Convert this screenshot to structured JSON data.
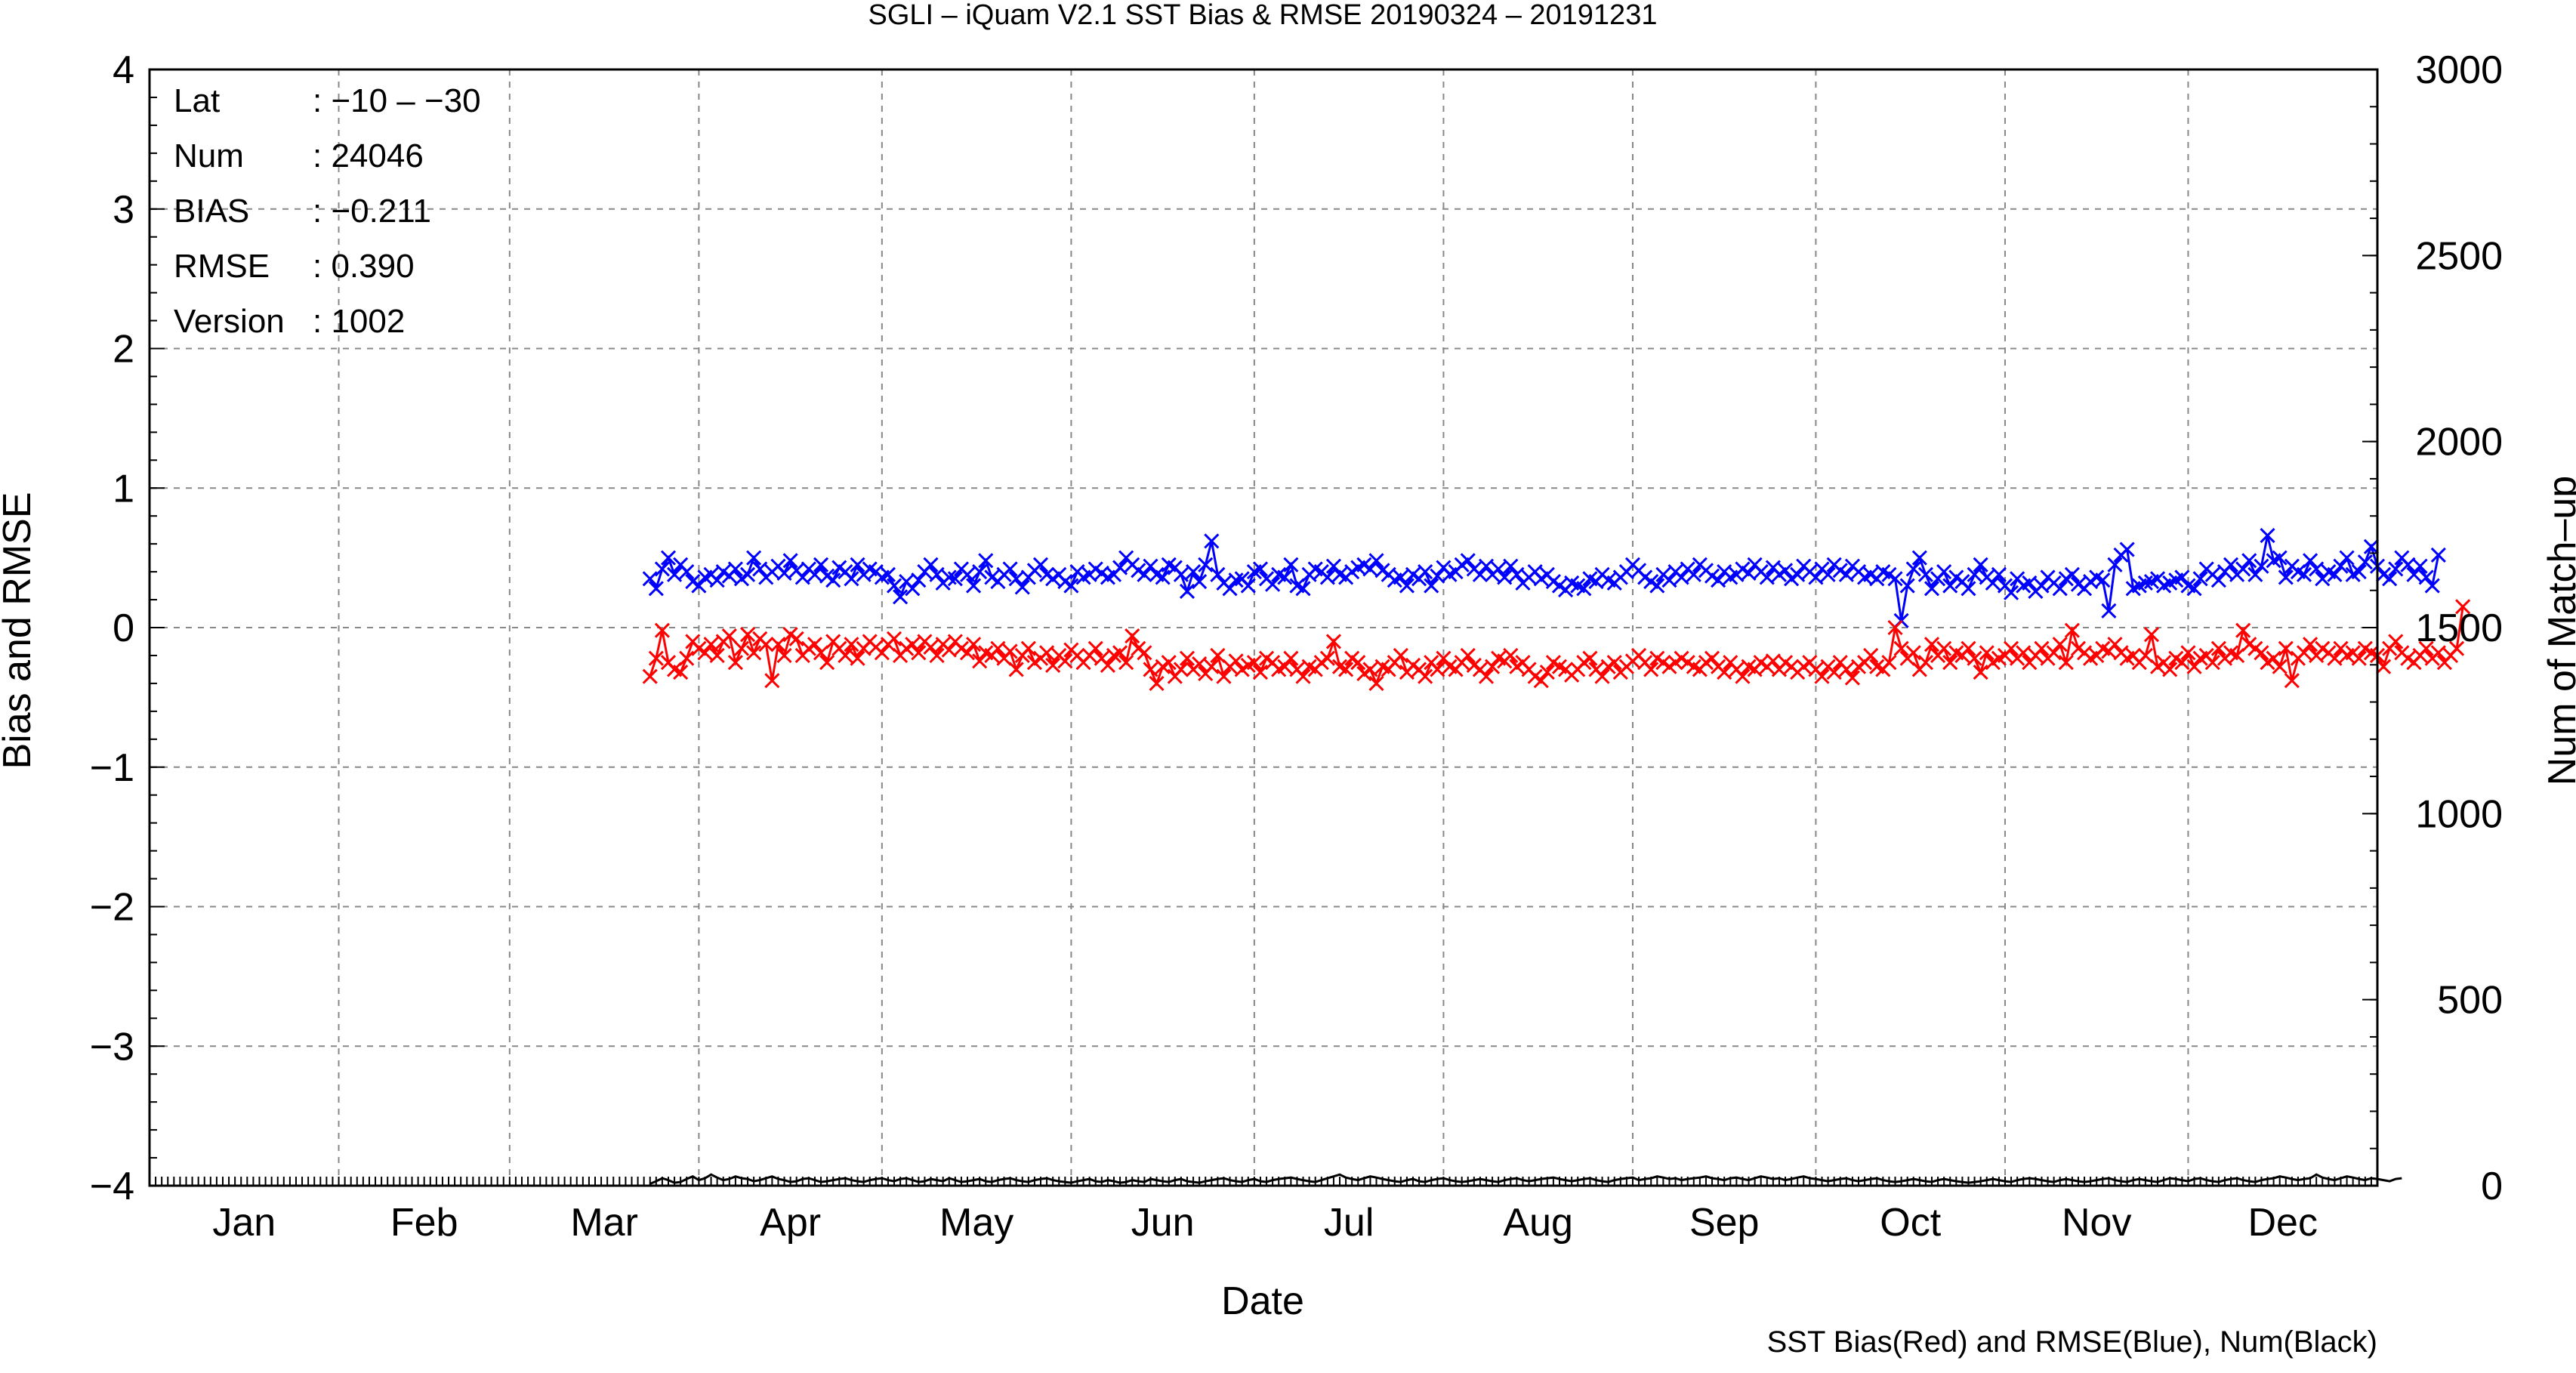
{
  "chart_data": {
    "type": "line",
    "title": "SGLI – iQuam V2.1 SST Bias & RMSE 20190324 – 20191231",
    "xlabel": "Date",
    "ylabel": "Bias and RMSE",
    "ylabel_right": "Num of Match–up",
    "footer": "SST Bias(Red) and RMSE(Blue), Num(Black)",
    "ylim": [
      -4,
      4
    ],
    "ylim_right": [
      0,
      3000
    ],
    "yticks": [
      "−4",
      "−3",
      "−2",
      "−1",
      "0",
      "1",
      "2",
      "3",
      "4"
    ],
    "yticks_right": [
      "0",
      "500",
      "1000",
      "1500",
      "2000",
      "2500",
      "3000"
    ],
    "xlim": [
      "2019-01-01",
      "2019-12-31"
    ],
    "month_labels": [
      "Jan",
      "Feb",
      "Mar",
      "Apr",
      "May",
      "Jun",
      "Jul",
      "Aug",
      "Sep",
      "Oct",
      "Nov",
      "Dec"
    ],
    "grid": true,
    "info": [
      {
        "key": "Lat",
        "value": ": −10 – −30"
      },
      {
        "key": "Num",
        "value": ": 24046"
      },
      {
        "key": "BIAS",
        "value": ": −0.211"
      },
      {
        "key": "RMSE",
        "value": ": 0.390"
      },
      {
        "key": "Version",
        "value": ": 1002"
      }
    ],
    "series": [
      {
        "color": "#0000ff",
        "axis": "left",
        "marker": "x",
        "start": "2019-03-24",
        "step_days": 1,
        "values": [
          0.35,
          0.28,
          0.42,
          0.5,
          0.38,
          0.45,
          0.4,
          0.33,
          0.3,
          0.36,
          0.38,
          0.34,
          0.4,
          0.37,
          0.42,
          0.35,
          0.38,
          0.5,
          0.42,
          0.36,
          0.4,
          0.44,
          0.39,
          0.48,
          0.41,
          0.36,
          0.42,
          0.38,
          0.45,
          0.37,
          0.34,
          0.43,
          0.4,
          0.35,
          0.45,
          0.38,
          0.42,
          0.4,
          0.36,
          0.38,
          0.3,
          0.22,
          0.33,
          0.28,
          0.34,
          0.4,
          0.45,
          0.38,
          0.32,
          0.36,
          0.35,
          0.42,
          0.38,
          0.3,
          0.4,
          0.48,
          0.36,
          0.33,
          0.38,
          0.42,
          0.35,
          0.29,
          0.36,
          0.41,
          0.45,
          0.38,
          0.35,
          0.38,
          0.33,
          0.3,
          0.4,
          0.36,
          0.38,
          0.42,
          0.39,
          0.36,
          0.38,
          0.43,
          0.5,
          0.45,
          0.41,
          0.38,
          0.44,
          0.38,
          0.36,
          0.45,
          0.43,
          0.38,
          0.26,
          0.4,
          0.33,
          0.45,
          0.62,
          0.38,
          0.32,
          0.28,
          0.34,
          0.35,
          0.3,
          0.4,
          0.42,
          0.35,
          0.31,
          0.38,
          0.36,
          0.45,
          0.3,
          0.28,
          0.38,
          0.42,
          0.4,
          0.36,
          0.44,
          0.38,
          0.36,
          0.4,
          0.43,
          0.45,
          0.42,
          0.48,
          0.41,
          0.38,
          0.34,
          0.36,
          0.3,
          0.38,
          0.35,
          0.4,
          0.3,
          0.37,
          0.43,
          0.38,
          0.4,
          0.45,
          0.48,
          0.42,
          0.38,
          0.44,
          0.38,
          0.42,
          0.36,
          0.44,
          0.38,
          0.32,
          0.36,
          0.4,
          0.35,
          0.38,
          0.33,
          0.3,
          0.27,
          0.32,
          0.3,
          0.28,
          0.35,
          0.33,
          0.38,
          0.34,
          0.32,
          0.36,
          0.4,
          0.45,
          0.41,
          0.36,
          0.33,
          0.3,
          0.38,
          0.34,
          0.4,
          0.36,
          0.42,
          0.38,
          0.45,
          0.41,
          0.37,
          0.34,
          0.4,
          0.36,
          0.38,
          0.42,
          0.39,
          0.45,
          0.4,
          0.36,
          0.43,
          0.38,
          0.41,
          0.35,
          0.38,
          0.44,
          0.4,
          0.36,
          0.42,
          0.38,
          0.45,
          0.41,
          0.38,
          0.44,
          0.4,
          0.36,
          0.38,
          0.35,
          0.4,
          0.38,
          0.35,
          0.05,
          0.3,
          0.42,
          0.5,
          0.38,
          0.28,
          0.35,
          0.4,
          0.3,
          0.36,
          0.33,
          0.28,
          0.38,
          0.45,
          0.36,
          0.32,
          0.38,
          0.3,
          0.25,
          0.35,
          0.3,
          0.32,
          0.26,
          0.3,
          0.36,
          0.32,
          0.28,
          0.35,
          0.38,
          0.31,
          0.28,
          0.33,
          0.36,
          0.34,
          0.12,
          0.45,
          0.52,
          0.56,
          0.28,
          0.3,
          0.32,
          0.33,
          0.35,
          0.3,
          0.32,
          0.34,
          0.36,
          0.3,
          0.28,
          0.35,
          0.42,
          0.38,
          0.34,
          0.4,
          0.45,
          0.38,
          0.42,
          0.48,
          0.38,
          0.44,
          0.66,
          0.48,
          0.5,
          0.36,
          0.44,
          0.4,
          0.38,
          0.48,
          0.42,
          0.35,
          0.4,
          0.38,
          0.44,
          0.5,
          0.38,
          0.4,
          0.47,
          0.58,
          0.44,
          0.38,
          0.35,
          0.42,
          0.5,
          0.45,
          0.38,
          0.44,
          0.36,
          0.3,
          0.52
        ]
      },
      {
        "color": "#ff0000",
        "axis": "left",
        "marker": "x",
        "start": "2019-03-24",
        "step_days": 1,
        "values": [
          -0.35,
          -0.22,
          -0.02,
          -0.25,
          -0.3,
          -0.32,
          -0.22,
          -0.1,
          -0.15,
          -0.18,
          -0.12,
          -0.2,
          -0.1,
          -0.06,
          -0.25,
          -0.15,
          -0.05,
          -0.18,
          -0.08,
          -0.12,
          -0.38,
          -0.12,
          -0.2,
          -0.05,
          -0.08,
          -0.2,
          -0.15,
          -0.12,
          -0.18,
          -0.25,
          -0.1,
          -0.15,
          -0.2,
          -0.12,
          -0.22,
          -0.15,
          -0.1,
          -0.14,
          -0.18,
          -0.12,
          -0.08,
          -0.2,
          -0.15,
          -0.12,
          -0.18,
          -0.1,
          -0.14,
          -0.2,
          -0.12,
          -0.16,
          -0.1,
          -0.15,
          -0.18,
          -0.12,
          -0.24,
          -0.18,
          -0.2,
          -0.15,
          -0.22,
          -0.17,
          -0.3,
          -0.2,
          -0.15,
          -0.25,
          -0.22,
          -0.18,
          -0.27,
          -0.2,
          -0.24,
          -0.16,
          -0.2,
          -0.25,
          -0.2,
          -0.15,
          -0.22,
          -0.27,
          -0.2,
          -0.18,
          -0.25,
          -0.06,
          -0.15,
          -0.18,
          -0.3,
          -0.4,
          -0.28,
          -0.25,
          -0.35,
          -0.3,
          -0.22,
          -0.3,
          -0.26,
          -0.33,
          -0.28,
          -0.2,
          -0.35,
          -0.28,
          -0.24,
          -0.3,
          -0.27,
          -0.25,
          -0.32,
          -0.22,
          -0.25,
          -0.3,
          -0.28,
          -0.22,
          -0.3,
          -0.35,
          -0.28,
          -0.3,
          -0.25,
          -0.22,
          -0.1,
          -0.28,
          -0.3,
          -0.22,
          -0.25,
          -0.33,
          -0.3,
          -0.4,
          -0.28,
          -0.3,
          -0.25,
          -0.2,
          -0.32,
          -0.27,
          -0.3,
          -0.35,
          -0.25,
          -0.3,
          -0.22,
          -0.28,
          -0.3,
          -0.25,
          -0.2,
          -0.27,
          -0.3,
          -0.35,
          -0.28,
          -0.22,
          -0.24,
          -0.2,
          -0.28,
          -0.25,
          -0.3,
          -0.35,
          -0.38,
          -0.32,
          -0.25,
          -0.28,
          -0.3,
          -0.34,
          -0.3,
          -0.25,
          -0.22,
          -0.3,
          -0.35,
          -0.28,
          -0.25,
          -0.32,
          -0.28,
          -0.24,
          -0.2,
          -0.25,
          -0.3,
          -0.22,
          -0.25,
          -0.28,
          -0.25,
          -0.22,
          -0.25,
          -0.28,
          -0.3,
          -0.25,
          -0.22,
          -0.28,
          -0.32,
          -0.25,
          -0.3,
          -0.35,
          -0.28,
          -0.3,
          -0.25,
          -0.28,
          -0.24,
          -0.3,
          -0.25,
          -0.28,
          -0.32,
          -0.28,
          -0.25,
          -0.3,
          -0.35,
          -0.28,
          -0.32,
          -0.25,
          -0.3,
          -0.36,
          -0.28,
          -0.25,
          -0.2,
          -0.28,
          -0.3,
          -0.25,
          0.0,
          -0.15,
          -0.22,
          -0.18,
          -0.3,
          -0.25,
          -0.12,
          -0.2,
          -0.15,
          -0.25,
          -0.18,
          -0.2,
          -0.15,
          -0.22,
          -0.32,
          -0.18,
          -0.25,
          -0.22,
          -0.2,
          -0.15,
          -0.22,
          -0.18,
          -0.25,
          -0.2,
          -0.15,
          -0.22,
          -0.18,
          -0.12,
          -0.25,
          -0.02,
          -0.15,
          -0.18,
          -0.22,
          -0.2,
          -0.15,
          -0.17,
          -0.12,
          -0.18,
          -0.22,
          -0.2,
          -0.25,
          -0.2,
          -0.05,
          -0.28,
          -0.25,
          -0.3,
          -0.22,
          -0.25,
          -0.18,
          -0.28,
          -0.22,
          -0.2,
          -0.25,
          -0.15,
          -0.22,
          -0.18,
          -0.2,
          -0.02,
          -0.12,
          -0.15,
          -0.18,
          -0.25,
          -0.22,
          -0.28,
          -0.15,
          -0.38,
          -0.22,
          -0.18,
          -0.12,
          -0.2,
          -0.15,
          -0.18,
          -0.22,
          -0.15,
          -0.2,
          -0.18,
          -0.22,
          -0.15,
          -0.18,
          -0.2,
          -0.28,
          -0.15,
          -0.1,
          -0.18,
          -0.22,
          -0.25,
          -0.2,
          -0.15,
          -0.22,
          -0.18,
          -0.25,
          -0.2,
          -0.15,
          0.15
        ]
      },
      {
        "color": "#000000",
        "axis": "right",
        "marker": "none",
        "start": "2019-03-24",
        "step_days": 1,
        "values": [
          5,
          12,
          20,
          15,
          8,
          10,
          18,
          25,
          15,
          20,
          30,
          22,
          15,
          18,
          25,
          20,
          18,
          12,
          15,
          20,
          25,
          18,
          15,
          10,
          12,
          18,
          20,
          15,
          10,
          12,
          15,
          18,
          20,
          15,
          12,
          10,
          15,
          18,
          20,
          15,
          12,
          18,
          20,
          15,
          10,
          12,
          18,
          15,
          12,
          20,
          15,
          10,
          12,
          15,
          18,
          12,
          10,
          15,
          18,
          20,
          15,
          12,
          10,
          15,
          18,
          20,
          15,
          12,
          10,
          8,
          12,
          15,
          18,
          12,
          10,
          15,
          12,
          8,
          10,
          15,
          12,
          10,
          18,
          15,
          12,
          10,
          15,
          18,
          12,
          10,
          8,
          12,
          15,
          18,
          20,
          15,
          12,
          10,
          15,
          18,
          12,
          10,
          15,
          18,
          20,
          22,
          18,
          15,
          12,
          10,
          15,
          20,
          25,
          30,
          22,
          18,
          15,
          20,
          25,
          22,
          18,
          15,
          12,
          10,
          15,
          18,
          12,
          10,
          15,
          18,
          20,
          15,
          12,
          10,
          12,
          15,
          18,
          15,
          12,
          10,
          15,
          18,
          20,
          15,
          12,
          15,
          18,
          20,
          22,
          18,
          15,
          12,
          15,
          18,
          20,
          15,
          12,
          10,
          15,
          18,
          20,
          22,
          15,
          18,
          20,
          25,
          22,
          18,
          20,
          15,
          18,
          20,
          22,
          25,
          20,
          18,
          15,
          20,
          22,
          18,
          15,
          20,
          25,
          22,
          18,
          20,
          15,
          18,
          22,
          25,
          20,
          18,
          15,
          12,
          15,
          18,
          20,
          15,
          12,
          15,
          18,
          20,
          15,
          12,
          10,
          12,
          15,
          18,
          15,
          12,
          10,
          15,
          18,
          15,
          12,
          10,
          8,
          10,
          12,
          15,
          18,
          15,
          12,
          10,
          15,
          18,
          20,
          18,
          15,
          12,
          10,
          15,
          18,
          15,
          12,
          10,
          12,
          15,
          18,
          20,
          15,
          12,
          10,
          15,
          18,
          15,
          12,
          10,
          15,
          20,
          18,
          15,
          12,
          18,
          20,
          15,
          12,
          10,
          15,
          18,
          20,
          15,
          12,
          10,
          15,
          18,
          20,
          25,
          22,
          18,
          15,
          18,
          20,
          30,
          22,
          18,
          15,
          20,
          25,
          22,
          18,
          15,
          20,
          18,
          15,
          12,
          18,
          20
        ]
      }
    ]
  }
}
